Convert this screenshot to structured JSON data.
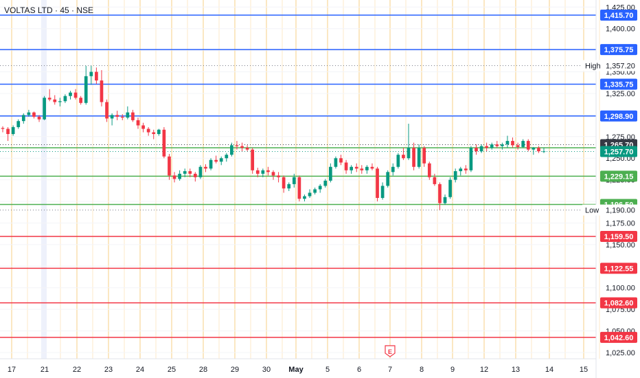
{
  "header": {
    "symbol_text": "VOLTAS LTD · 45 · NSE"
  },
  "chart_data": {
    "type": "candlestick",
    "symbol": "VOLTAS LTD",
    "interval": "45",
    "exchange": "NSE",
    "x_labels": [
      "17",
      "21",
      "22",
      "23",
      "24",
      "25",
      "28",
      "29",
      "30",
      "May",
      "5",
      "6",
      "7",
      "8",
      "9",
      "12",
      "13",
      "14",
      "15"
    ],
    "ylim": [
      1021,
      1430
    ],
    "y_ticks": [
      1025,
      1050,
      1075,
      1100,
      1125,
      1150,
      1175,
      1200,
      1225,
      1250,
      1275,
      1300,
      1325,
      1350,
      1375,
      1400,
      1425
    ],
    "y_tick_labels": [
      "1,025.00",
      "1,050.00",
      "1,075.00",
      "1,100.00",
      "1,125.00",
      "1,150.00",
      "1,175.00",
      "1,200.00",
      "1,225.00",
      "1,250.00",
      "1,275.00",
      "1,300.00",
      "1,325.00",
      "1,350.00",
      "1,375.00",
      "1,400.00",
      "1,425.00"
    ],
    "horizontal_levels": [
      {
        "value": 1415.7,
        "label": "1,415.70",
        "color": "#2962ff"
      },
      {
        "value": 1375.75,
        "label": "1,375.75",
        "color": "#2962ff"
      },
      {
        "value": 1335.75,
        "label": "1,335.75",
        "color": "#2962ff"
      },
      {
        "value": 1298.9,
        "label": "1,298.90",
        "color": "#2962ff"
      },
      {
        "value": 1262.1,
        "label": "1,262.10",
        "color": "#4caf50"
      },
      {
        "value": 1229.15,
        "label": "1,229.15",
        "color": "#4caf50"
      },
      {
        "value": 1196.5,
        "label": "1,196.50",
        "color": "#4caf50"
      },
      {
        "value": 1159.5,
        "label": "1,159.50",
        "color": "#f23645"
      },
      {
        "value": 1122.55,
        "label": "1,122.55",
        "color": "#f23645"
      },
      {
        "value": 1082.6,
        "label": "1,082.60",
        "color": "#f23645"
      },
      {
        "value": 1042.6,
        "label": "1,042.60",
        "color": "#f23645"
      }
    ],
    "price_tags": [
      {
        "value": 1265.7,
        "label": "1,265.70",
        "color": "#363a45"
      },
      {
        "value": 1257.7,
        "label": "1,257.70",
        "color": "#089981"
      }
    ],
    "high": {
      "label": "High",
      "value": 1357.2,
      "value_label": "1,357.20"
    },
    "low": {
      "label": "Low",
      "value": 1190.0,
      "value_label": "1,190.00"
    },
    "candle_color_up": "#089981",
    "candle_color_down": "#f23645",
    "candles": [
      [
        1285,
        1287,
        1280,
        1284
      ],
      [
        1284,
        1286,
        1270,
        1278
      ],
      [
        1278,
        1288,
        1276,
        1286
      ],
      [
        1286,
        1295,
        1284,
        1293
      ],
      [
        1293,
        1302,
        1290,
        1300
      ],
      [
        1300,
        1306,
        1298,
        1303
      ],
      [
        1303,
        1304,
        1296,
        1298
      ],
      [
        1298,
        1300,
        1292,
        1295
      ],
      [
        1295,
        1322,
        1294,
        1320
      ],
      [
        1320,
        1330,
        1316,
        1318
      ],
      [
        1318,
        1323,
        1312,
        1315
      ],
      [
        1315,
        1320,
        1310,
        1316
      ],
      [
        1316,
        1324,
        1314,
        1322
      ],
      [
        1322,
        1328,
        1318,
        1326
      ],
      [
        1326,
        1330,
        1318,
        1320
      ],
      [
        1320,
        1322,
        1312,
        1314
      ],
      [
        1314,
        1357,
        1312,
        1345
      ],
      [
        1345,
        1357,
        1335,
        1350
      ],
      [
        1350,
        1355,
        1336,
        1340
      ],
      [
        1340,
        1352,
        1310,
        1315
      ],
      [
        1315,
        1318,
        1292,
        1296
      ],
      [
        1296,
        1302,
        1288,
        1300
      ],
      [
        1300,
        1305,
        1294,
        1298
      ],
      [
        1298,
        1301,
        1294,
        1297
      ],
      [
        1297,
        1310,
        1295,
        1303
      ],
      [
        1303,
        1306,
        1292,
        1294
      ],
      [
        1294,
        1297,
        1284,
        1288
      ],
      [
        1288,
        1291,
        1280,
        1284
      ],
      [
        1284,
        1286,
        1276,
        1280
      ],
      [
        1280,
        1283,
        1272,
        1278
      ],
      [
        1278,
        1284,
        1276,
        1283
      ],
      [
        1283,
        1286,
        1250,
        1252
      ],
      [
        1252,
        1255,
        1225,
        1230
      ],
      [
        1230,
        1234,
        1222,
        1226
      ],
      [
        1226,
        1236,
        1224,
        1232
      ],
      [
        1232,
        1238,
        1228,
        1235
      ],
      [
        1235,
        1238,
        1228,
        1232
      ],
      [
        1232,
        1234,
        1223,
        1228
      ],
      [
        1228,
        1242,
        1226,
        1240
      ],
      [
        1240,
        1243,
        1234,
        1238
      ],
      [
        1238,
        1250,
        1236,
        1248
      ],
      [
        1248,
        1253,
        1244,
        1246
      ],
      [
        1246,
        1252,
        1242,
        1250
      ],
      [
        1250,
        1256,
        1246,
        1254
      ],
      [
        1254,
        1268,
        1252,
        1265
      ],
      [
        1265,
        1270,
        1260,
        1264
      ],
      [
        1264,
        1268,
        1258,
        1262
      ],
      [
        1262,
        1265,
        1258,
        1260
      ],
      [
        1260,
        1262,
        1232,
        1236
      ],
      [
        1236,
        1239,
        1228,
        1232
      ],
      [
        1232,
        1238,
        1228,
        1236
      ],
      [
        1236,
        1240,
        1230,
        1234
      ],
      [
        1234,
        1236,
        1225,
        1230
      ],
      [
        1230,
        1234,
        1222,
        1228
      ],
      [
        1228,
        1230,
        1210,
        1215
      ],
      [
        1215,
        1222,
        1212,
        1220
      ],
      [
        1220,
        1232,
        1216,
        1228
      ],
      [
        1228,
        1230,
        1200,
        1203
      ],
      [
        1203,
        1208,
        1200,
        1206
      ],
      [
        1206,
        1214,
        1204,
        1210
      ],
      [
        1210,
        1216,
        1208,
        1214
      ],
      [
        1214,
        1220,
        1210,
        1218
      ],
      [
        1218,
        1226,
        1216,
        1224
      ],
      [
        1224,
        1244,
        1222,
        1240
      ],
      [
        1240,
        1252,
        1238,
        1250
      ],
      [
        1250,
        1254,
        1242,
        1245
      ],
      [
        1245,
        1248,
        1232,
        1236
      ],
      [
        1236,
        1242,
        1232,
        1240
      ],
      [
        1240,
        1244,
        1234,
        1238
      ],
      [
        1238,
        1242,
        1232,
        1236
      ],
      [
        1236,
        1242,
        1232,
        1240
      ],
      [
        1240,
        1244,
        1236,
        1238
      ],
      [
        1238,
        1240,
        1200,
        1204
      ],
      [
        1204,
        1222,
        1202,
        1218
      ],
      [
        1218,
        1236,
        1216,
        1234
      ],
      [
        1234,
        1244,
        1230,
        1240
      ],
      [
        1240,
        1256,
        1238,
        1254
      ],
      [
        1254,
        1262,
        1248,
        1250
      ],
      [
        1250,
        1290,
        1248,
        1262
      ],
      [
        1262,
        1268,
        1236,
        1240
      ],
      [
        1240,
        1266,
        1238,
        1262
      ],
      [
        1262,
        1264,
        1240,
        1244
      ],
      [
        1244,
        1246,
        1225,
        1228
      ],
      [
        1228,
        1232,
        1218,
        1220
      ],
      [
        1220,
        1222,
        1190,
        1198
      ],
      [
        1198,
        1208,
        1196,
        1205
      ],
      [
        1205,
        1228,
        1203,
        1225
      ],
      [
        1225,
        1238,
        1222,
        1235
      ],
      [
        1235,
        1240,
        1230,
        1238
      ],
      [
        1238,
        1242,
        1232,
        1236
      ],
      [
        1236,
        1264,
        1234,
        1262
      ],
      [
        1262,
        1266,
        1254,
        1258
      ],
      [
        1258,
        1266,
        1256,
        1264
      ],
      [
        1264,
        1268,
        1258,
        1262
      ],
      [
        1262,
        1268,
        1260,
        1266
      ],
      [
        1266,
        1270,
        1262,
        1264
      ],
      [
        1264,
        1268,
        1260,
        1266
      ],
      [
        1266,
        1276,
        1262,
        1270
      ],
      [
        1270,
        1274,
        1262,
        1265
      ],
      [
        1265,
        1268,
        1260,
        1263
      ],
      [
        1263,
        1272,
        1262,
        1270
      ],
      [
        1270,
        1272,
        1258,
        1260
      ],
      [
        1260,
        1263,
        1254,
        1262
      ],
      [
        1262,
        1264,
        1256,
        1258
      ],
      [
        1258,
        1262,
        1256,
        1258
      ]
    ]
  },
  "badges": {
    "event_marker": "E"
  }
}
